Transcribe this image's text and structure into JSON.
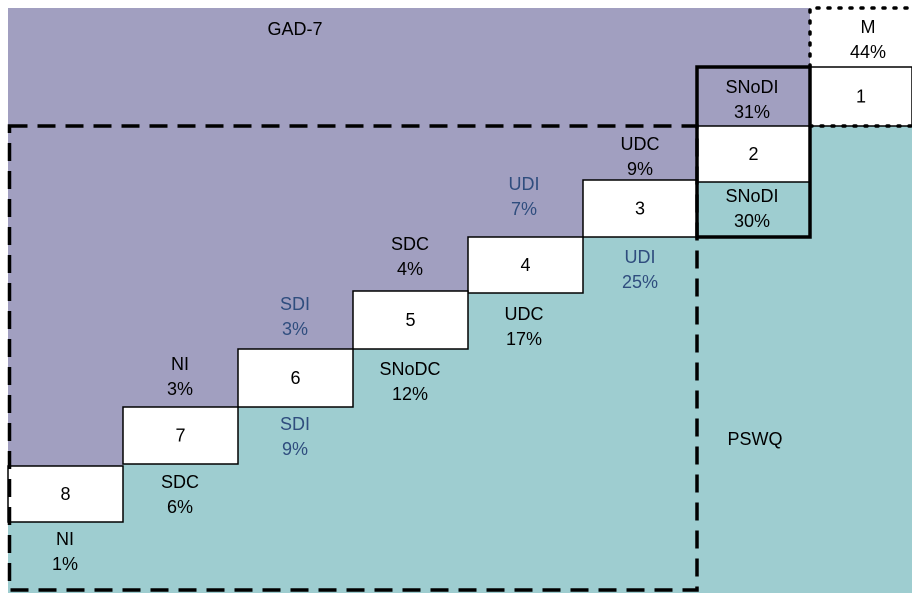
{
  "regions": [
    {
      "label": "GAD-7"
    },
    {
      "label": "PSWQ"
    }
  ],
  "boxes": [
    "1",
    "2",
    "3",
    "4",
    "5",
    "6",
    "7",
    "8"
  ],
  "annotations": [
    {
      "name": "M",
      "value": "44%",
      "color": "#000000"
    },
    {
      "name": "SNoDI",
      "value": "31%",
      "color": "#000000"
    },
    {
      "name": "UDC",
      "value": "9%",
      "color": "#000000"
    },
    {
      "name": "SNoDI",
      "value": "30%",
      "color": "#000000"
    },
    {
      "name": "UDI",
      "value": "7%",
      "color": "#2f4d7e"
    },
    {
      "name": "UDI",
      "value": "25%",
      "color": "#2f4d7e"
    },
    {
      "name": "SDC",
      "value": "4%",
      "color": "#000000"
    },
    {
      "name": "UDC",
      "value": "17%",
      "color": "#000000"
    },
    {
      "name": "SDI",
      "value": "3%",
      "color": "#2f4d7e"
    },
    {
      "name": "SNoDC",
      "value": "12%",
      "color": "#000000"
    },
    {
      "name": "NI",
      "value": "3%",
      "color": "#000000"
    },
    {
      "name": "SDI",
      "value": "9%",
      "color": "#2f4d7e"
    },
    {
      "name": "SDC",
      "value": "6%",
      "color": "#000000"
    },
    {
      "name": "NI",
      "value": "1%",
      "color": "#000000"
    }
  ]
}
